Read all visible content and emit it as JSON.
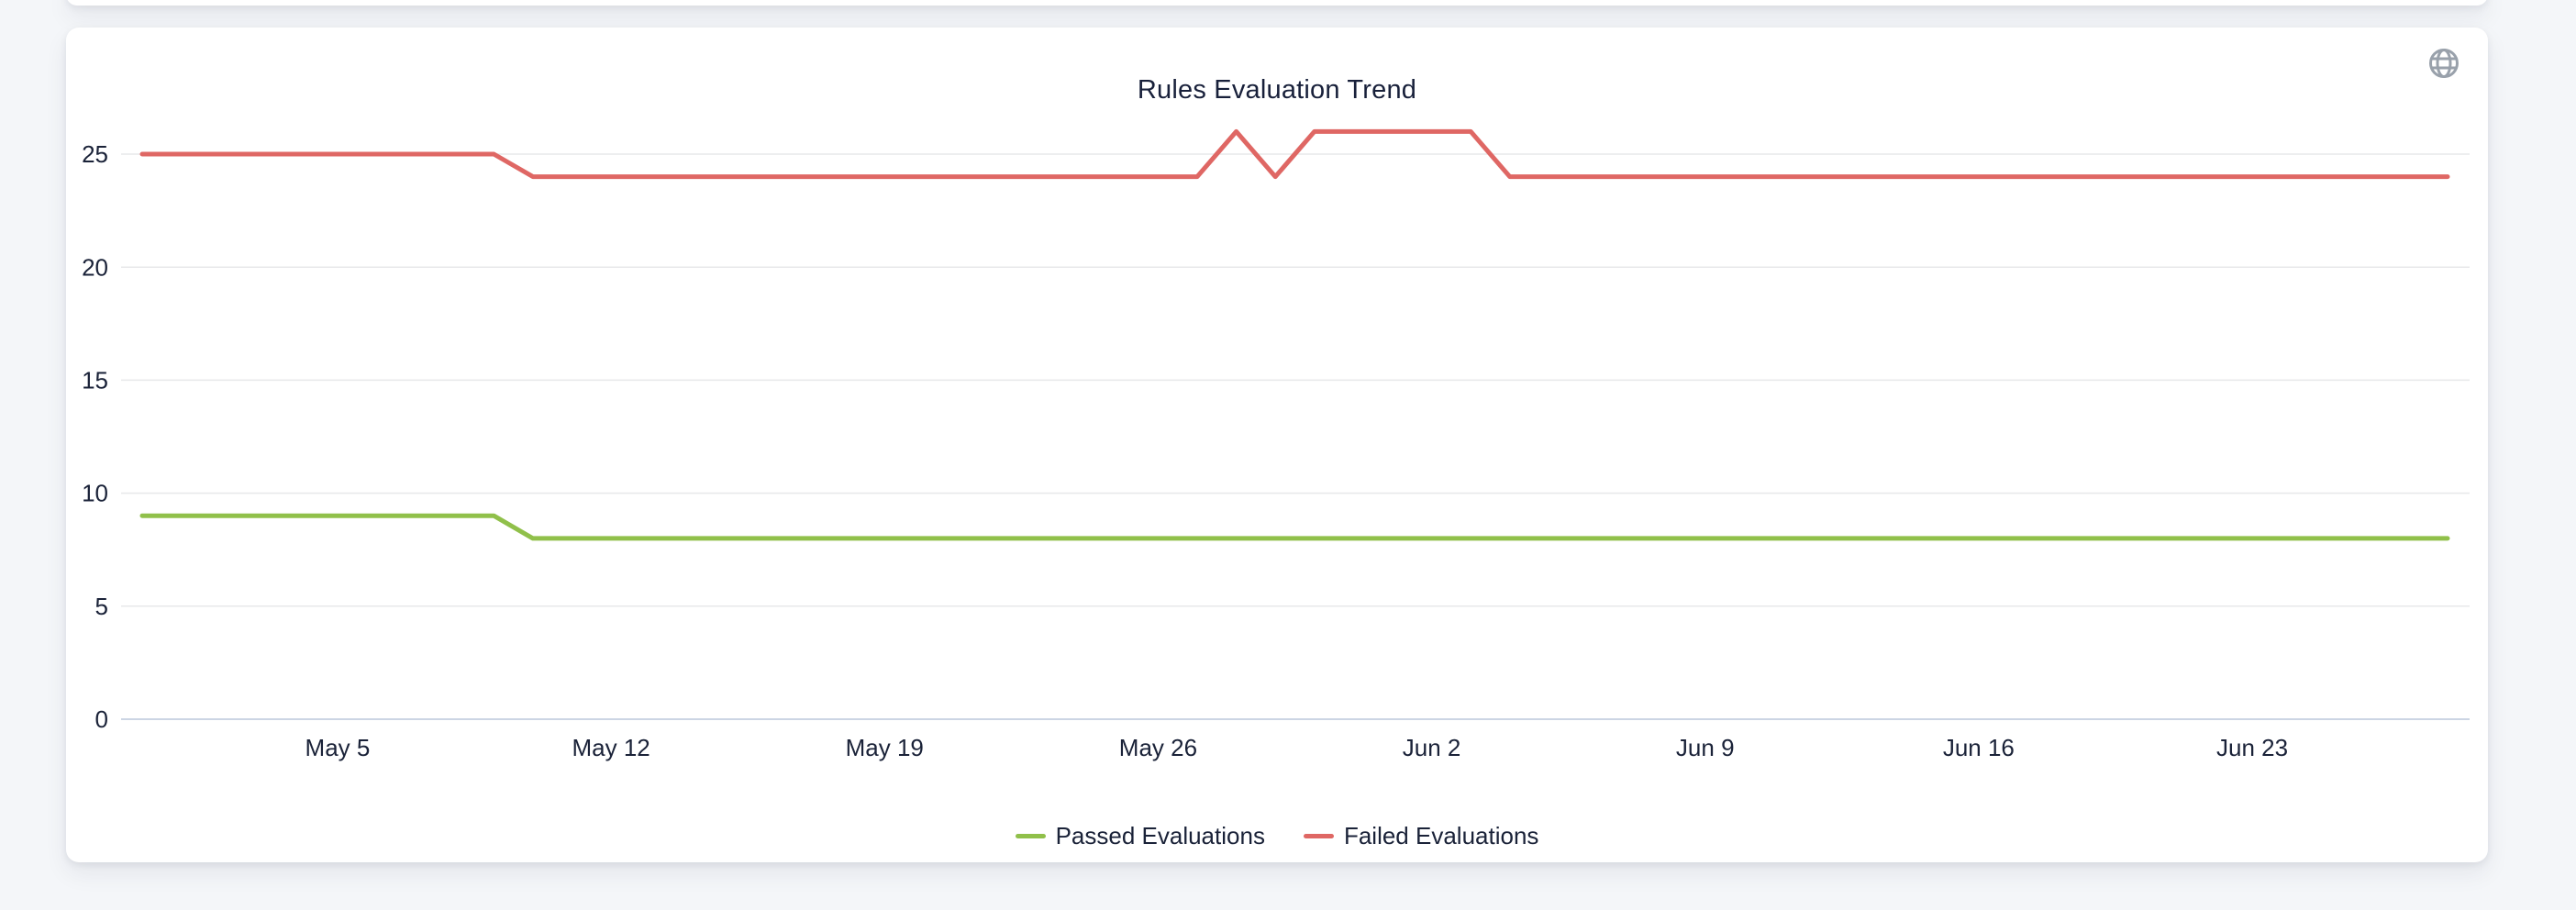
{
  "page": {
    "background_color": "#f4f6f9"
  },
  "card": {
    "title": "Rules Evaluation Trend",
    "header_icon": "globe-icon",
    "header_icon_color": "#99a1ab"
  },
  "chart_data": {
    "type": "line",
    "title": "Rules Evaluation Trend",
    "grid": "horizontal",
    "legend_position": "bottom",
    "x_axis_ticks": [
      "May 5",
      "May 12",
      "May 19",
      "May 26",
      "Jun 2",
      "Jun 9",
      "Jun 16",
      "Jun 23"
    ],
    "y_axis_ticks": [
      0,
      5,
      10,
      15,
      20,
      25
    ],
    "ylim": [
      0,
      27
    ],
    "x": [
      "Apr 30",
      "May 1",
      "May 2",
      "May 3",
      "May 4",
      "May 5",
      "May 6",
      "May 7",
      "May 8",
      "May 9",
      "May 10",
      "May 11",
      "May 12",
      "May 13",
      "May 14",
      "May 15",
      "May 16",
      "May 17",
      "May 18",
      "May 19",
      "May 20",
      "May 21",
      "May 22",
      "May 23",
      "May 24",
      "May 25",
      "May 26",
      "May 27",
      "May 28",
      "May 29",
      "May 30",
      "May 31",
      "Jun 1",
      "Jun 2",
      "Jun 3",
      "Jun 4",
      "Jun 5",
      "Jun 6",
      "Jun 7",
      "Jun 8",
      "Jun 9",
      "Jun 10",
      "Jun 11",
      "Jun 12",
      "Jun 13",
      "Jun 14",
      "Jun 15",
      "Jun 16",
      "Jun 17",
      "Jun 18",
      "Jun 19",
      "Jun 20",
      "Jun 21",
      "Jun 22",
      "Jun 23",
      "Jun 24",
      "Jun 25",
      "Jun 26",
      "Jun 27",
      "Jun 28"
    ],
    "series": [
      {
        "name": "Passed Evaluations",
        "color": "#90c04a",
        "values": [
          9,
          9,
          9,
          9,
          9,
          9,
          9,
          9,
          9,
          9,
          8,
          8,
          8,
          8,
          8,
          8,
          8,
          8,
          8,
          8,
          8,
          8,
          8,
          8,
          8,
          8,
          8,
          8,
          8,
          8,
          8,
          8,
          8,
          8,
          8,
          8,
          8,
          8,
          8,
          8,
          8,
          8,
          8,
          8,
          8,
          8,
          8,
          8,
          8,
          8,
          8,
          8,
          8,
          8,
          8,
          8,
          8,
          8,
          8,
          8
        ]
      },
      {
        "name": "Failed Evaluations",
        "color": "#df6764",
        "values": [
          25,
          25,
          25,
          25,
          25,
          25,
          25,
          25,
          25,
          25,
          24,
          24,
          24,
          24,
          24,
          24,
          24,
          24,
          24,
          24,
          24,
          24,
          24,
          24,
          24,
          24,
          24,
          24,
          26,
          24,
          26,
          26,
          26,
          26,
          26,
          24,
          24,
          24,
          24,
          24,
          24,
          24,
          24,
          24,
          24,
          24,
          24,
          24,
          24,
          24,
          24,
          24,
          24,
          24,
          24,
          24,
          24,
          24,
          24,
          24
        ]
      }
    ]
  }
}
